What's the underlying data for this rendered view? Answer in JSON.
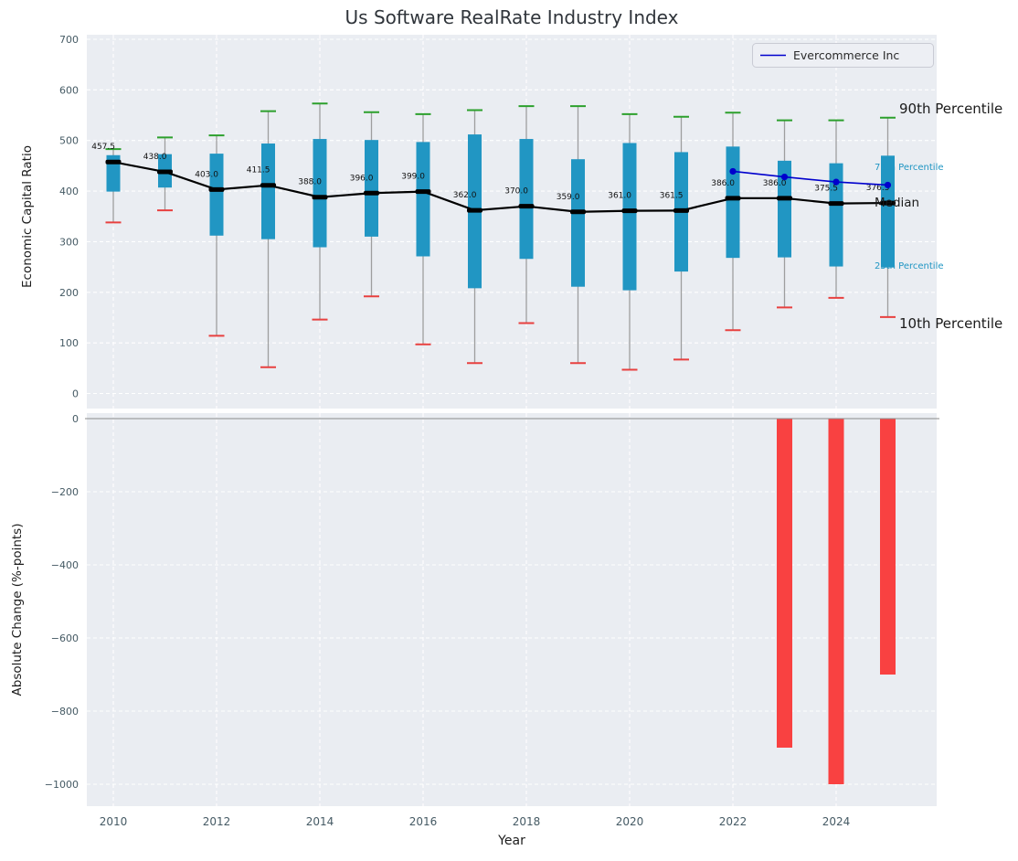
{
  "chart_data": {
    "type": "boxplot",
    "title": "Us Software RealRate Industry Index",
    "xlabel": "Year",
    "xticks": [
      2010,
      2012,
      2014,
      2016,
      2018,
      2020,
      2022,
      2024
    ],
    "years": [
      2010,
      2011,
      2012,
      2013,
      2014,
      2015,
      2016,
      2017,
      2018,
      2019,
      2020,
      2021,
      2022,
      2023,
      2024,
      2025
    ],
    "top_panel": {
      "ylabel": "Economic Capital Ratio",
      "ylim": [
        0,
        700
      ],
      "yticks": [
        0,
        100,
        200,
        300,
        400,
        500,
        600,
        700
      ],
      "grid": "white-dashed",
      "boxes": [
        {
          "year": 2010,
          "p90": 483,
          "p75": 471,
          "median": 457.5,
          "p25": 399,
          "p10": 338
        },
        {
          "year": 2011,
          "p90": 506,
          "p75": 473,
          "median": 438.0,
          "p25": 407,
          "p10": 362
        },
        {
          "year": 2012,
          "p90": 510,
          "p75": 474,
          "median": 403.0,
          "p25": 312,
          "p10": 114
        },
        {
          "year": 2013,
          "p90": 558,
          "p75": 494,
          "median": 411.5,
          "p25": 305,
          "p10": 52
        },
        {
          "year": 2014,
          "p90": 573,
          "p75": 503,
          "median": 388.0,
          "p25": 289,
          "p10": 146
        },
        {
          "year": 2015,
          "p90": 556,
          "p75": 501,
          "median": 396.0,
          "p25": 310,
          "p10": 192
        },
        {
          "year": 2016,
          "p90": 552,
          "p75": 497,
          "median": 399.0,
          "p25": 271,
          "p10": 97
        },
        {
          "year": 2017,
          "p90": 560,
          "p75": 512,
          "median": 362.0,
          "p25": 208,
          "p10": 60
        },
        {
          "year": 2018,
          "p90": 568,
          "p75": 503,
          "median": 370.0,
          "p25": 266,
          "p10": 139
        },
        {
          "year": 2019,
          "p90": 568,
          "p75": 463,
          "median": 359.0,
          "p25": 211,
          "p10": 60
        },
        {
          "year": 2020,
          "p90": 552,
          "p75": 495,
          "median": 361.0,
          "p25": 204,
          "p10": 47
        },
        {
          "year": 2021,
          "p90": 547,
          "p75": 477,
          "median": 361.5,
          "p25": 241,
          "p10": 67
        },
        {
          "year": 2022,
          "p90": 555,
          "p75": 488,
          "median": 386.0,
          "p25": 268,
          "p10": 125
        },
        {
          "year": 2023,
          "p90": 540,
          "p75": 460,
          "median": 386.0,
          "p25": 269,
          "p10": 170
        },
        {
          "year": 2024,
          "p90": 540,
          "p75": 455,
          "median": 375.5,
          "p25": 251,
          "p10": 189
        },
        {
          "year": 2025,
          "p90": 545,
          "p75": 470,
          "median": 376.5,
          "p25": 249,
          "p10": 151
        }
      ],
      "annotations": [
        "90th Percentile",
        "75th Percentile",
        "Median",
        "25th Percentile",
        "10th Percentile"
      ],
      "series": {
        "name": "Evercommerce Inc",
        "years": [
          2022,
          2023,
          2024,
          2025
        ],
        "values": [
          439,
          428,
          418,
          412
        ]
      },
      "legend": {
        "label": "Evercommerce Inc",
        "position": "upper right"
      }
    },
    "bottom_panel": {
      "ylabel": "Absolute Change (%-points)",
      "ylim": [
        -1000,
        0
      ],
      "yticks": [
        0,
        -200,
        -400,
        -600,
        -800,
        -1000
      ],
      "bars": [
        {
          "year": 2023,
          "value": -900
        },
        {
          "year": 2024,
          "value": -1000
        },
        {
          "year": 2025,
          "value": -700
        }
      ]
    },
    "colors": {
      "box": "#2196c3",
      "p90_cap": "#2ca02c",
      "p10_cap": "#e8403f",
      "bar": "#f94141",
      "median": "#000000",
      "series_line": "#0000cd",
      "whisker": "#9e9e9e",
      "plot_bg": "#eaedf2",
      "grid": "#ffffff",
      "zero_line": "#8a8a8a",
      "percentile_label_teal": "#2196c3",
      "annotation_black": "#1a1a1a",
      "tick_label": "#455a64"
    }
  }
}
